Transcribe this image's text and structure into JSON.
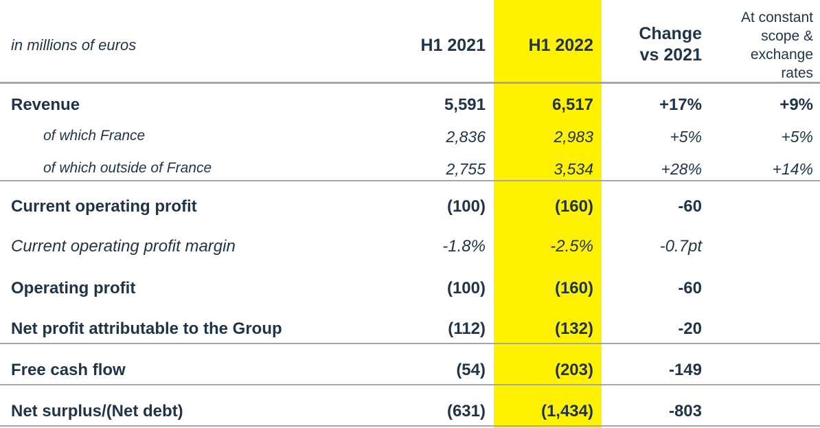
{
  "table": {
    "units": "in millions of euros",
    "headers": {
      "h1_2021": "H1 2021",
      "h1_2022": "H1 2022",
      "change_line1": "Change",
      "change_line2": "vs 2021",
      "constant_line1": "At constant",
      "constant_line2": "scope &",
      "constant_line3": "exchange",
      "constant_line4": "rates"
    },
    "rows": [
      {
        "label": "Revenue",
        "h1_2021": "5,591",
        "h1_2022": "6,517",
        "change": "+17%",
        "constant": "+9%"
      },
      {
        "label": "of which France",
        "h1_2021": "2,836",
        "h1_2022": "2,983",
        "change": "+5%",
        "constant": "+5%"
      },
      {
        "label": "of which outside of France",
        "h1_2021": "2,755",
        "h1_2022": "3,534",
        "change": "+28%",
        "constant": "+14%"
      },
      {
        "label": "Current operating profit",
        "h1_2021": "(100)",
        "h1_2022": "(160)",
        "change": "-60",
        "constant": ""
      },
      {
        "label": "Current operating profit margin",
        "h1_2021": "-1.8%",
        "h1_2022": "-2.5%",
        "change": "-0.7pt",
        "constant": ""
      },
      {
        "label": "Operating profit",
        "h1_2021": "(100)",
        "h1_2022": "(160)",
        "change": "-60",
        "constant": ""
      },
      {
        "label": "Net profit attributable to the Group",
        "h1_2021": "(112)",
        "h1_2022": "(132)",
        "change": "-20",
        "constant": ""
      },
      {
        "label": "Free cash flow",
        "h1_2021": "(54)",
        "h1_2022": "(203)",
        "change": "-149",
        "constant": ""
      },
      {
        "label": "Net surplus/(Net debt)",
        "h1_2021": "(631)",
        "h1_2022": "(1,434)",
        "change": "-803",
        "constant": ""
      }
    ],
    "colors": {
      "highlight": "#fff200",
      "text": "#1f3349",
      "rule": "#a6a6a6"
    }
  }
}
